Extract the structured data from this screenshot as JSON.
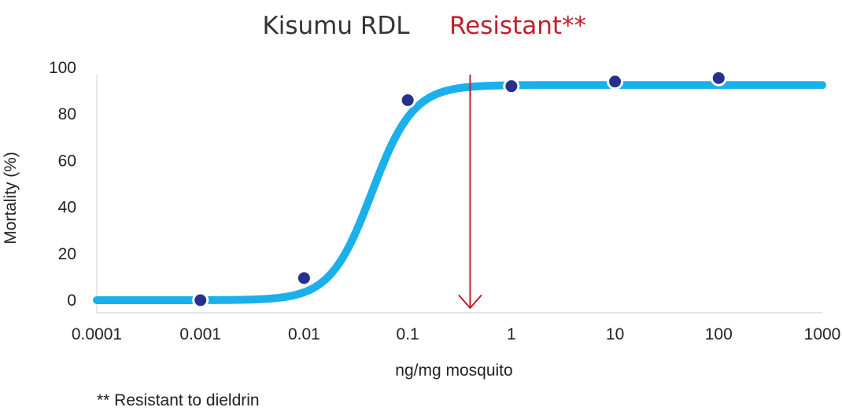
{
  "chart_data": {
    "type": "scatter",
    "title_strain": "Kisumu RDL",
    "title_status": "Resistant**",
    "title_status_color": "#c0202a",
    "xlabel": "ng/mg mosquito",
    "ylabel": "Mortality (%)",
    "x_scale": "log",
    "xlim": [
      0.0001,
      1000
    ],
    "ylim": [
      0,
      100
    ],
    "x_tick_values": [
      0.0001,
      0.001,
      0.01,
      0.1,
      1,
      10,
      100,
      1000
    ],
    "x_tick_labels": [
      "0.0001",
      "0.001",
      "0.01",
      "0.1",
      "1",
      "10",
      "100",
      "1000"
    ],
    "y_tick_values": [
      0,
      20,
      40,
      60,
      80,
      100
    ],
    "y_tick_labels": [
      "0",
      "20",
      "40",
      "60",
      "80",
      "100"
    ],
    "grid": false,
    "series": [
      {
        "kind": "points",
        "color": "#25318a",
        "x": [
          0.001,
          0.01,
          0.1,
          1,
          10,
          100
        ],
        "y": [
          0,
          9.5,
          86,
          92,
          94,
          95.5
        ]
      },
      {
        "kind": "fitted-curve",
        "color": "#1ab0ea",
        "model": "log-logistic",
        "lower_asymptote": 0,
        "upper_asymptote": 92.5,
        "ec50": 0.045,
        "log10_slope_factor": 0.2,
        "x_range": [
          0.0001,
          1000
        ]
      }
    ],
    "annotations": [
      {
        "kind": "arrow",
        "x": 0.4,
        "y_from": 97,
        "y_to": 0,
        "color": "#c0202a"
      }
    ],
    "footnote": "** Resistant to dieldrin"
  }
}
